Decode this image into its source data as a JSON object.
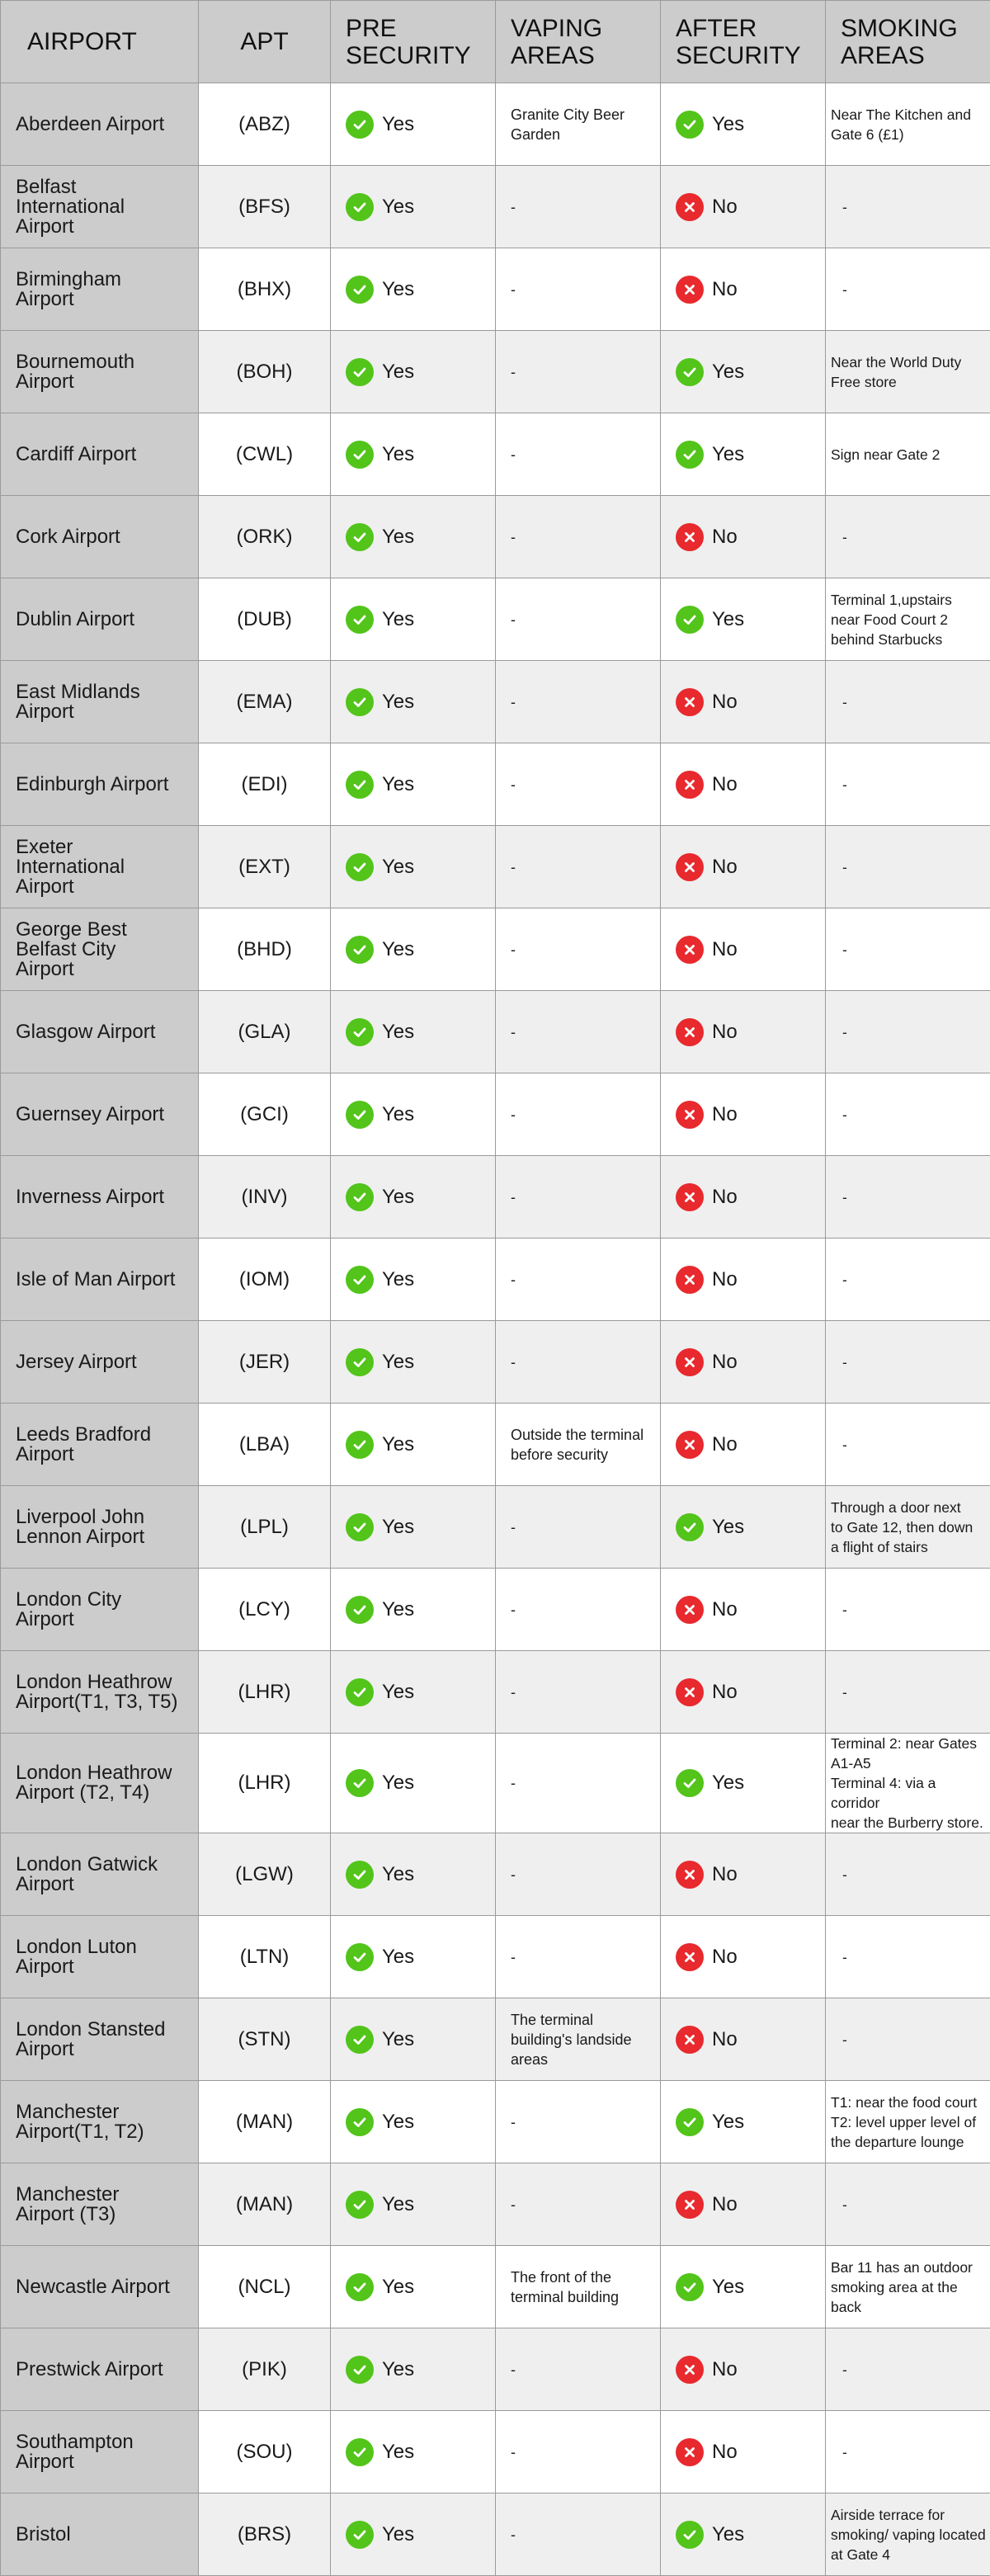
{
  "headers": {
    "airport": "AIRPORT",
    "apt": "APT",
    "pre_security": [
      "PRE",
      "SECURITY"
    ],
    "vaping_areas": [
      "VAPING",
      "AREAS"
    ],
    "after_security": [
      "AFTER",
      "SECURITY"
    ],
    "smoking_areas": [
      "SMOKING",
      "AREAS"
    ]
  },
  "status_labels": {
    "yes": "Yes",
    "no": "No"
  },
  "colors": {
    "yes": "#52c41a",
    "no": "#e8292d",
    "header_bg": "#cccccc"
  },
  "icons": {
    "yes": "check-circle-icon",
    "no": "x-circle-icon"
  },
  "rows": [
    {
      "name": [
        "Aberdeen Airport"
      ],
      "code": "(ABZ)",
      "pre": "yes",
      "vaping": [
        "Granite City Beer",
        "Garden"
      ],
      "after": "yes",
      "smoking": [
        "Near The Kitchen and",
        "Gate 6 (£1)"
      ]
    },
    {
      "name": [
        "Belfast",
        "International",
        "Airport"
      ],
      "code": "(BFS)",
      "pre": "yes",
      "vaping": [
        "-"
      ],
      "after": "no",
      "smoking": [
        "-"
      ]
    },
    {
      "name": [
        "Birmingham",
        "Airport"
      ],
      "code": "(BHX)",
      "pre": "yes",
      "vaping": [
        "-"
      ],
      "after": "no",
      "smoking": [
        "-"
      ]
    },
    {
      "name": [
        "Bournemouth",
        "Airport"
      ],
      "code": "(BOH)",
      "pre": "yes",
      "vaping": [
        "-"
      ],
      "after": "yes",
      "smoking": [
        "Near the World Duty",
        "Free store"
      ]
    },
    {
      "name": [
        "Cardiff Airport"
      ],
      "code": "(CWL)",
      "pre": "yes",
      "vaping": [
        "-"
      ],
      "after": "yes",
      "smoking": [
        "Sign near Gate 2"
      ]
    },
    {
      "name": [
        "Cork Airport"
      ],
      "code": "(ORK)",
      "pre": "yes",
      "vaping": [
        "-"
      ],
      "after": "no",
      "smoking": [
        "-"
      ]
    },
    {
      "name": [
        "Dublin Airport"
      ],
      "code": "(DUB)",
      "pre": "yes",
      "vaping": [
        "-"
      ],
      "after": "yes",
      "smoking": [
        "Terminal 1,upstairs",
        "near Food Court 2",
        "behind Starbucks"
      ]
    },
    {
      "name": [
        "East Midlands",
        "Airport"
      ],
      "code": "(EMA)",
      "pre": "yes",
      "vaping": [
        "-"
      ],
      "after": "no",
      "smoking": [
        "-"
      ]
    },
    {
      "name": [
        "Edinburgh Airport"
      ],
      "code": "(EDI)",
      "pre": "yes",
      "vaping": [
        "-"
      ],
      "after": "no",
      "smoking": [
        "-"
      ]
    },
    {
      "name": [
        "Exeter",
        "International",
        "Airport"
      ],
      "code": "(EXT)",
      "pre": "yes",
      "vaping": [
        "-"
      ],
      "after": "no",
      "smoking": [
        "-"
      ]
    },
    {
      "name": [
        "George Best",
        "Belfast City",
        "Airport"
      ],
      "code": "(BHD)",
      "pre": "yes",
      "vaping": [
        "-"
      ],
      "after": "no",
      "smoking": [
        "-"
      ]
    },
    {
      "name": [
        "Glasgow Airport"
      ],
      "code": "(GLA)",
      "pre": "yes",
      "vaping": [
        "-"
      ],
      "after": "no",
      "smoking": [
        "-"
      ]
    },
    {
      "name": [
        "Guernsey Airport"
      ],
      "code": "(GCI)",
      "pre": "yes",
      "vaping": [
        "-"
      ],
      "after": "no",
      "smoking": [
        "-"
      ]
    },
    {
      "name": [
        "Inverness Airport"
      ],
      "code": "(INV)",
      "pre": "yes",
      "vaping": [
        "-"
      ],
      "after": "no",
      "smoking": [
        "-"
      ]
    },
    {
      "name": [
        "Isle of Man Airport"
      ],
      "code": "(IOM)",
      "pre": "yes",
      "vaping": [
        "-"
      ],
      "after": "no",
      "smoking": [
        "-"
      ]
    },
    {
      "name": [
        "Jersey Airport"
      ],
      "code": "(JER)",
      "pre": "yes",
      "vaping": [
        "-"
      ],
      "after": "no",
      "smoking": [
        "-"
      ]
    },
    {
      "name": [
        "Leeds Bradford",
        "Airport"
      ],
      "code": "(LBA)",
      "pre": "yes",
      "vaping": [
        "Outside the terminal",
        "before security"
      ],
      "after": "no",
      "smoking": [
        "-"
      ]
    },
    {
      "name": [
        "Liverpool John",
        "Lennon Airport"
      ],
      "code": "(LPL)",
      "pre": "yes",
      "vaping": [
        "-"
      ],
      "after": "yes",
      "smoking": [
        "Through a door next",
        "to Gate 12, then down",
        "a flight of stairs"
      ]
    },
    {
      "name": [
        "London City",
        "Airport"
      ],
      "code": "(LCY)",
      "pre": "yes",
      "vaping": [
        "-"
      ],
      "after": "no",
      "smoking": [
        "-"
      ]
    },
    {
      "name": [
        "London Heathrow",
        "Airport(T1, T3, T5)"
      ],
      "code": "(LHR)",
      "pre": "yes",
      "vaping": [
        "-"
      ],
      "after": "no",
      "smoking": [
        "-"
      ]
    },
    {
      "name": [
        "London Heathrow",
        "Airport (T2, T4)"
      ],
      "code": "(LHR)",
      "pre": "yes",
      "vaping": [
        "-"
      ],
      "after": "yes",
      "smoking": [
        "Terminal 2: near Gates",
        "A1-A5",
        "Terminal 4: via a corridor",
        "near the Burberry store."
      ]
    },
    {
      "name": [
        "London Gatwick",
        "Airport"
      ],
      "code": "(LGW)",
      "pre": "yes",
      "vaping": [
        "-"
      ],
      "after": "no",
      "smoking": [
        "-"
      ]
    },
    {
      "name": [
        "London Luton",
        "Airport"
      ],
      "code": "(LTN)",
      "pre": "yes",
      "vaping": [
        "-"
      ],
      "after": "no",
      "smoking": [
        "-"
      ]
    },
    {
      "name": [
        "London Stansted",
        "Airport"
      ],
      "code": "(STN)",
      "pre": "yes",
      "vaping": [
        "The terminal",
        "building's landside",
        "areas"
      ],
      "after": "no",
      "smoking": [
        "-"
      ]
    },
    {
      "name": [
        "Manchester",
        "Airport(T1, T2)"
      ],
      "code": "(MAN)",
      "pre": "yes",
      "vaping": [
        "-"
      ],
      "after": "yes",
      "smoking": [
        "T1: near the food court",
        "T2: level upper level of",
        "the departure lounge"
      ]
    },
    {
      "name": [
        "Manchester",
        "Airport (T3)"
      ],
      "code": "(MAN)",
      "pre": "yes",
      "vaping": [
        "-"
      ],
      "after": "no",
      "smoking": [
        "-"
      ]
    },
    {
      "name": [
        "Newcastle Airport"
      ],
      "code": "(NCL)",
      "pre": "yes",
      "vaping": [
        "The front of the",
        "terminal building"
      ],
      "after": "yes",
      "smoking": [
        "Bar 11 has an outdoor",
        "smoking area at the",
        "back"
      ]
    },
    {
      "name": [
        "Prestwick Airport"
      ],
      "code": "(PIK)",
      "pre": "yes",
      "vaping": [
        "-"
      ],
      "after": "no",
      "smoking": [
        "-"
      ]
    },
    {
      "name": [
        "Southampton",
        "Airport"
      ],
      "code": "(SOU)",
      "pre": "yes",
      "vaping": [
        "-"
      ],
      "after": "no",
      "smoking": [
        "-"
      ]
    },
    {
      "name": [
        "Bristol"
      ],
      "code": "(BRS)",
      "pre": "yes",
      "vaping": [
        "-"
      ],
      "after": "yes",
      "smoking": [
        "Airside terrace for",
        "smoking/ vaping located",
        "at Gate 4"
      ]
    }
  ]
}
